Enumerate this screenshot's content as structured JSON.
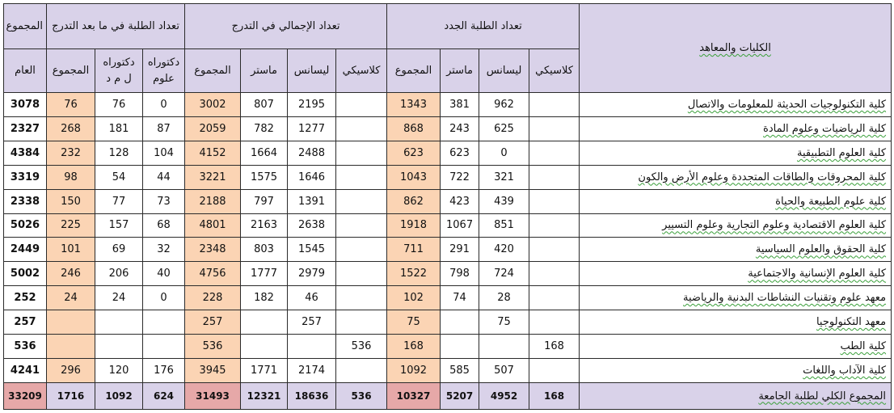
{
  "headers": {
    "institutions": "الكليات والمعاهد",
    "new_students": "تعداد الطلبة الجدد",
    "total_undergrad": "تعداد الإجمالي في التدرج",
    "postgrad": "تعداد الطلبة في ما بعد التدرج",
    "overall": "المجموع",
    "sub": {
      "classic": "كلاسيكي",
      "licence": "ليسانس",
      "master": "ماستر",
      "sum": "المجموع",
      "doctorate_sciences": "دكتوراه علوم",
      "doctorate_lmd": "دكتوراه ل م د",
      "general": "العام"
    }
  },
  "rows": [
    {
      "name": "كلية التكنولوجيات  الحديثة للمعلومات والاتصال",
      "new_classic": "",
      "new_licence": "962",
      "new_master": "381",
      "new_sum": "1343",
      "tot_classic": "",
      "tot_licence": "2195",
      "tot_master": "807",
      "tot_sum": "3002",
      "pg_doc_sci": "0",
      "pg_doc_lmd": "76",
      "pg_sum": "76",
      "grand": "3078"
    },
    {
      "name": "كلية الرياضيات وعلوم المادة",
      "new_classic": "",
      "new_licence": "625",
      "new_master": "243",
      "new_sum": "868",
      "tot_classic": "",
      "tot_licence": "1277",
      "tot_master": "782",
      "tot_sum": "2059",
      "pg_doc_sci": "87",
      "pg_doc_lmd": "181",
      "pg_sum": "268",
      "grand": "2327"
    },
    {
      "name": "كلية العلوم التطبيقية",
      "new_classic": "",
      "new_licence": "0",
      "new_master": "623",
      "new_sum": "623",
      "tot_classic": "",
      "tot_licence": "2488",
      "tot_master": "1664",
      "tot_sum": "4152",
      "pg_doc_sci": "104",
      "pg_doc_lmd": "128",
      "pg_sum": "232",
      "grand": "4384"
    },
    {
      "name": "كلية المحروقات والطاقات المتجددة وعلوم الأرض والكون",
      "new_classic": "",
      "new_licence": "321",
      "new_master": "722",
      "new_sum": "1043",
      "tot_classic": "",
      "tot_licence": "1646",
      "tot_master": "1575",
      "tot_sum": "3221",
      "pg_doc_sci": "44",
      "pg_doc_lmd": "54",
      "pg_sum": "98",
      "grand": "3319"
    },
    {
      "name": "كلية علوم الطبيعة والحياة",
      "new_classic": "",
      "new_licence": "439",
      "new_master": "423",
      "new_sum": "862",
      "tot_classic": "",
      "tot_licence": "1391",
      "tot_master": "797",
      "tot_sum": "2188",
      "pg_doc_sci": "73",
      "pg_doc_lmd": "77",
      "pg_sum": "150",
      "grand": "2338"
    },
    {
      "name": "كلية العلوم الاقتصادية وعلوم التجارية وعلوم التسيير",
      "new_classic": "",
      "new_licence": "851",
      "new_master": "1067",
      "new_sum": "1918",
      "tot_classic": "",
      "tot_licence": "2638",
      "tot_master": "2163",
      "tot_sum": "4801",
      "pg_doc_sci": "68",
      "pg_doc_lmd": "157",
      "pg_sum": "225",
      "grand": "5026"
    },
    {
      "name": "كلية الحقوق والعلوم السياسية",
      "new_classic": "",
      "new_licence": "420",
      "new_master": "291",
      "new_sum": "711",
      "tot_classic": "",
      "tot_licence": "1545",
      "tot_master": "803",
      "tot_sum": "2348",
      "pg_doc_sci": "32",
      "pg_doc_lmd": "69",
      "pg_sum": "101",
      "grand": "2449"
    },
    {
      "name": "كلية العلوم الإنسانية والاجتماعية",
      "new_classic": "",
      "new_licence": "724",
      "new_master": "798",
      "new_sum": "1522",
      "tot_classic": "",
      "tot_licence": "2979",
      "tot_master": "1777",
      "tot_sum": "4756",
      "pg_doc_sci": "40",
      "pg_doc_lmd": "206",
      "pg_sum": "246",
      "grand": "5002"
    },
    {
      "name": "معهد علوم وتقنيات النشاطات البدنية والرياضية",
      "new_classic": "",
      "new_licence": "28",
      "new_master": "74",
      "new_sum": "102",
      "tot_classic": "",
      "tot_licence": "46",
      "tot_master": "182",
      "tot_sum": "228",
      "pg_doc_sci": "0",
      "pg_doc_lmd": "24",
      "pg_sum": "24",
      "grand": "252"
    },
    {
      "name": "معهد التكنولوجيا",
      "new_classic": "",
      "new_licence": "75",
      "new_master": "",
      "new_sum": "75",
      "tot_classic": "",
      "tot_licence": "257",
      "tot_master": "",
      "tot_sum": "257",
      "pg_doc_sci": "",
      "pg_doc_lmd": "",
      "pg_sum": "",
      "grand": "257"
    },
    {
      "name": "كلية الطب",
      "new_classic": "168",
      "new_licence": "",
      "new_master": "",
      "new_sum": "168",
      "tot_classic": "536",
      "tot_licence": "",
      "tot_master": "",
      "tot_sum": "536",
      "pg_doc_sci": "",
      "pg_doc_lmd": "",
      "pg_sum": "",
      "grand": "536"
    },
    {
      "name": "كلية الآداب واللغات",
      "new_classic": "",
      "new_licence": "507",
      "new_master": "585",
      "new_sum": "1092",
      "tot_classic": "",
      "tot_licence": "2174",
      "tot_master": "1771",
      "tot_sum": "3945",
      "pg_doc_sci": "176",
      "pg_doc_lmd": "120",
      "pg_sum": "296",
      "grand": "4241"
    }
  ],
  "totals": {
    "name": "المجموع الكلي لطلبة الجامعة",
    "new_classic": "168",
    "new_licence": "4952",
    "new_master": "5207",
    "new_sum": "10327",
    "tot_classic": "536",
    "tot_licence": "18636",
    "tot_master": "12321",
    "tot_sum": "31493",
    "pg_doc_sci": "624",
    "pg_doc_lmd": "1092",
    "pg_sum": "1716",
    "grand": "33209"
  }
}
